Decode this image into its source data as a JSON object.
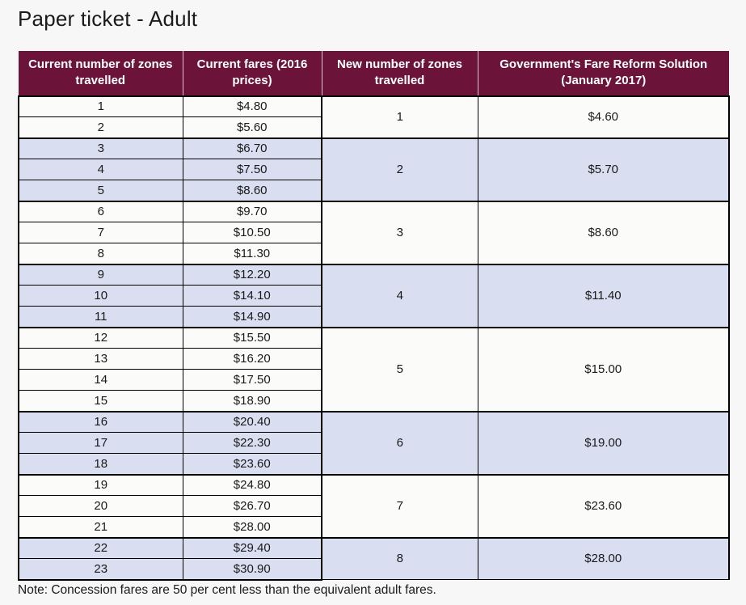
{
  "page": {
    "title": "Paper ticket - Adult",
    "note": "Note: Concession fares are 50 per cent less than the equivalent adult fares."
  },
  "colors": {
    "page_bg": "#f7f7f7",
    "header_bg": "#6b1339",
    "header_text": "#ffffff",
    "shaded_row": "#d9def1",
    "plain_row": "#fbfbf9",
    "border": "#000000",
    "text": "#1a1a1a"
  },
  "table": {
    "headers": [
      "Current number of zones travelled",
      "Current fares (2016 prices)",
      "New number of zones travelled",
      "Government's Fare Reform Solution (January 2017)"
    ],
    "groups": [
      {
        "new_zone": "1",
        "new_fare": "$4.60",
        "shaded": false,
        "rows": [
          {
            "zone": "1",
            "fare": "$4.80"
          },
          {
            "zone": "2",
            "fare": "$5.60"
          }
        ]
      },
      {
        "new_zone": "2",
        "new_fare": "$5.70",
        "shaded": true,
        "rows": [
          {
            "zone": "3",
            "fare": "$6.70"
          },
          {
            "zone": "4",
            "fare": "$7.50"
          },
          {
            "zone": "5",
            "fare": "$8.60"
          }
        ]
      },
      {
        "new_zone": "3",
        "new_fare": "$8.60",
        "shaded": false,
        "rows": [
          {
            "zone": "6",
            "fare": "$9.70"
          },
          {
            "zone": "7",
            "fare": "$10.50"
          },
          {
            "zone": "8",
            "fare": "$11.30"
          }
        ]
      },
      {
        "new_zone": "4",
        "new_fare": "$11.40",
        "shaded": true,
        "rows": [
          {
            "zone": "9",
            "fare": "$12.20"
          },
          {
            "zone": "10",
            "fare": "$14.10"
          },
          {
            "zone": "11",
            "fare": "$14.90"
          }
        ]
      },
      {
        "new_zone": "5",
        "new_fare": "$15.00",
        "shaded": false,
        "rows": [
          {
            "zone": "12",
            "fare": "$15.50"
          },
          {
            "zone": "13",
            "fare": "$16.20"
          },
          {
            "zone": "14",
            "fare": "$17.50"
          },
          {
            "zone": "15",
            "fare": "$18.90"
          }
        ]
      },
      {
        "new_zone": "6",
        "new_fare": "$19.00",
        "shaded": true,
        "rows": [
          {
            "zone": "16",
            "fare": "$20.40"
          },
          {
            "zone": "17",
            "fare": "$22.30"
          },
          {
            "zone": "18",
            "fare": "$23.60"
          }
        ]
      },
      {
        "new_zone": "7",
        "new_fare": "$23.60",
        "shaded": false,
        "rows": [
          {
            "zone": "19",
            "fare": "$24.80"
          },
          {
            "zone": "20",
            "fare": "$26.70"
          },
          {
            "zone": "21",
            "fare": "$28.00"
          }
        ]
      },
      {
        "new_zone": "8",
        "new_fare": "$28.00",
        "shaded": true,
        "rows": [
          {
            "zone": "22",
            "fare": "$29.40"
          },
          {
            "zone": "23",
            "fare": "$30.90"
          }
        ]
      }
    ]
  }
}
